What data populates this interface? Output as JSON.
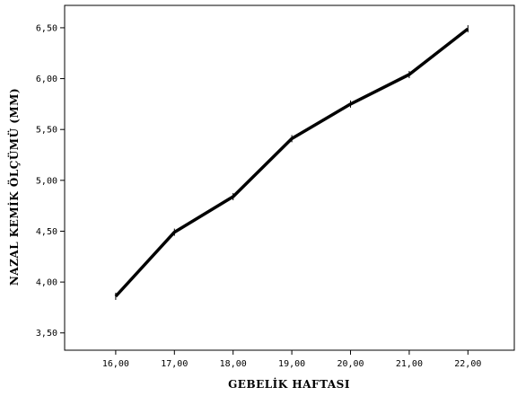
{
  "chart_data": {
    "type": "line",
    "xlabel": "GEBELİK HAFTASI",
    "ylabel": "NAZAL KEMİK ÖLÇÜMÜ (MM)",
    "x": [
      16,
      17,
      18,
      19,
      20,
      21,
      22
    ],
    "x_tick_labels": [
      "16,00",
      "17,00",
      "18,00",
      "19,00",
      "20,00",
      "21,00",
      "22,00"
    ],
    "y_ticks": [
      3.5,
      4.0,
      4.5,
      5.0,
      5.5,
      6.0,
      6.5
    ],
    "y_tick_labels": [
      "3,50",
      "4,00",
      "4,50",
      "5,00",
      "5,50",
      "6,00",
      "6,50"
    ],
    "series": [
      {
        "values": [
          3.86,
          4.49,
          4.84,
          5.41,
          5.75,
          6.04,
          6.49
        ]
      }
    ],
    "xlim": [
      15.13,
      22.79
    ],
    "ylim": [
      3.33,
      6.72
    ],
    "grid": false,
    "line_color": "#000000"
  }
}
